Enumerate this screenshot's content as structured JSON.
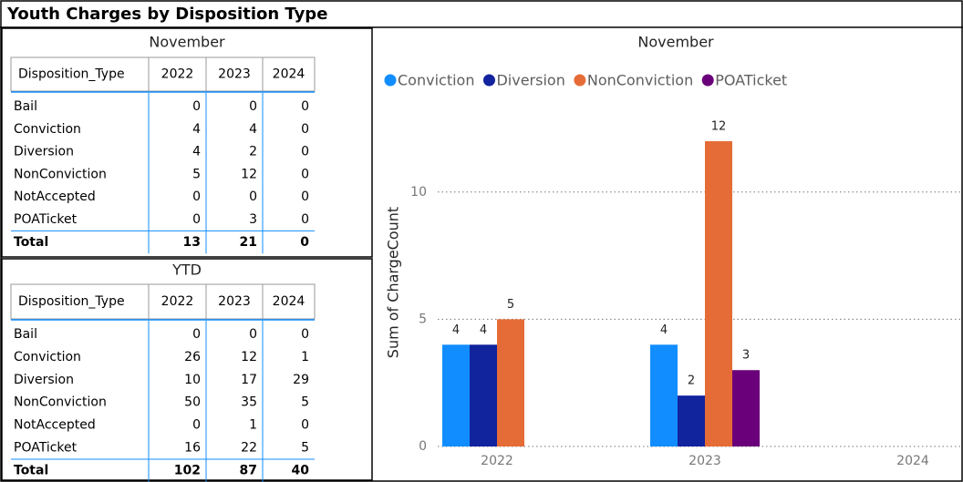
{
  "title": "Youth Charges by Disposition Type",
  "tables": [
    {
      "title": "November",
      "columns": [
        "Disposition_Type",
        "2022",
        "2023",
        "2024"
      ],
      "rows": [
        [
          "Bail",
          0,
          0,
          0
        ],
        [
          "Conviction",
          4,
          4,
          0
        ],
        [
          "Diversion",
          4,
          2,
          0
        ],
        [
          "NonConviction",
          5,
          12,
          0
        ],
        [
          "NotAccepted",
          0,
          0,
          0
        ],
        [
          "POATicket",
          0,
          3,
          0
        ]
      ],
      "total": [
        "Total",
        13,
        21,
        0
      ]
    },
    {
      "title": "YTD",
      "columns": [
        "Disposition_Type",
        "2022",
        "2023",
        "2024"
      ],
      "rows": [
        [
          "Bail",
          0,
          0,
          0
        ],
        [
          "Conviction",
          26,
          12,
          1
        ],
        [
          "Diversion",
          10,
          17,
          29
        ],
        [
          "NonConviction",
          50,
          35,
          5
        ],
        [
          "NotAccepted",
          0,
          1,
          0
        ],
        [
          "POATicket",
          16,
          22,
          5
        ]
      ],
      "total": [
        "Total",
        102,
        87,
        40
      ]
    }
  ],
  "chart_data": {
    "type": "bar",
    "title": "November",
    "y_label": "Sum of ChargeCount",
    "categories": [
      "2022",
      "2023",
      "2024"
    ],
    "series": [
      {
        "name": "Conviction",
        "color": "#118DFF",
        "values": [
          4,
          4,
          null
        ]
      },
      {
        "name": "Diversion",
        "color": "#12239E",
        "values": [
          4,
          2,
          null
        ]
      },
      {
        "name": "NonConviction",
        "color": "#E66C37",
        "values": [
          5,
          12,
          null
        ]
      },
      {
        "name": "POATicket",
        "color": "#6B007B",
        "values": [
          null,
          3,
          null
        ]
      }
    ],
    "ylim": [
      0,
      13
    ],
    "yticks": [
      0,
      5,
      10
    ],
    "grid": true,
    "legend": "top-left"
  }
}
